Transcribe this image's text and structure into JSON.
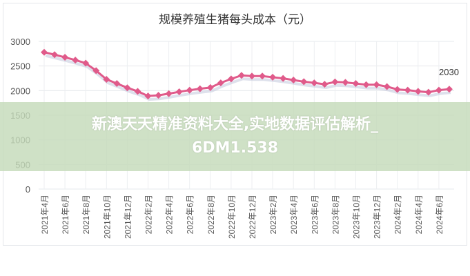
{
  "banner": {
    "line1": "新澳天天精准资料大全,实地数据评估解析_",
    "line2": "6DM1.538"
  },
  "chart_data": {
    "type": "line",
    "title": "规模养殖生猪每头成本（元）",
    "xlabel": "",
    "ylabel": "",
    "ylim": [
      0,
      3000
    ],
    "yticks": [
      0,
      500,
      1000,
      1500,
      2000,
      2500,
      3000
    ],
    "tick_labels": [
      "2021年4月",
      "2021年6月",
      "2021年8月",
      "2021年10月",
      "2021年12月",
      "2022年2月",
      "2022年4月",
      "2022年6月",
      "2022年8月",
      "2022年10月",
      "2022年12月",
      "2023年2月",
      "2023年4月",
      "2023年6月",
      "2023年8月",
      "2023年10月",
      "2023年12月",
      "2024年2月",
      "2024年4月",
      "2024年6月"
    ],
    "grid": true,
    "color": "#e05a8a",
    "annotation": "2030",
    "values": [
      2780,
      2730,
      2677,
      2620,
      2558,
      2406,
      2229,
      2144,
      2058,
      1986,
      1891,
      1905,
      1938,
      1976,
      2009,
      2038,
      2062,
      2157,
      2238,
      2310,
      2296,
      2296,
      2272,
      2248,
      2215,
      2181,
      2157,
      2129,
      2177,
      2167,
      2144,
      2120,
      2120,
      2082,
      2024,
      2010,
      1986,
      1967,
      2010,
      2030
    ]
  }
}
